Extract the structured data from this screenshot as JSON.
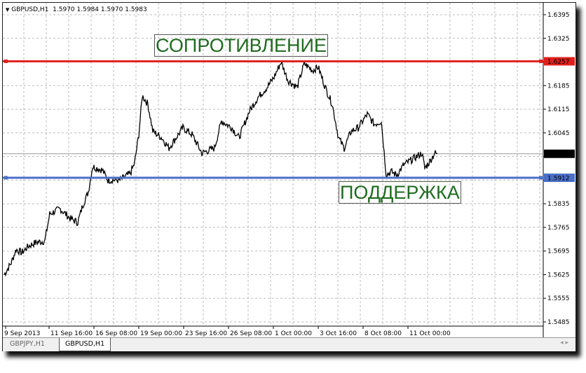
{
  "header": {
    "symbol": "GBPUSD,H1",
    "ohlc": "1.5970 1.5984 1.5970 1.5983",
    "menu_icon": "triangle-down-icon"
  },
  "tabs": [
    {
      "label": "GBPJPY,H1",
      "active": false
    },
    {
      "label": "GBPUSD,H1",
      "active": true
    }
  ],
  "annotations": {
    "resistance": "СОПРОТИВЛЕНИЕ",
    "support": "ПОДДЕРЖКА"
  },
  "chart_data": {
    "type": "line",
    "symbol": "GBPUSD",
    "timeframe": "H1",
    "ylim": [
      1.5485,
      1.6395
    ],
    "y_ticks": [
      "1.6395",
      "1.6325",
      "1.6257",
      "1.6185",
      "1.6115",
      "1.6045",
      "1.5983",
      "1.5912",
      "1.5835",
      "1.5765",
      "1.5695",
      "1.5625",
      "1.5555",
      "1.5485"
    ],
    "x_ticks": [
      "9 Sep 2013",
      "11 Sep 16:00",
      "16 Sep 08:00",
      "19 Sep 00:00",
      "23 Sep 16:00",
      "26 Sep 08:00",
      "1 Oct 00:00",
      "3 Oct 16:00",
      "8 Oct 08:00",
      "11 Oct 00:00"
    ],
    "resistance": {
      "value": 1.6257,
      "label": "1.6257",
      "color": "#e0201c"
    },
    "support": {
      "value": 1.5912,
      "label": "1.5912",
      "color": "#4a6fc8"
    },
    "current": {
      "value": 1.5983,
      "label": "1.5983"
    },
    "grid": true,
    "series": [
      {
        "bar_price": [
          [
            0,
            1.5625
          ],
          [
            10,
            1.566
          ],
          [
            17,
            1.57
          ],
          [
            25,
            1.569
          ],
          [
            35,
            1.571
          ],
          [
            45,
            1.572
          ],
          [
            58,
            1.5725
          ],
          [
            65,
            1.5805
          ],
          [
            80,
            1.582
          ],
          [
            95,
            1.579
          ],
          [
            105,
            1.578
          ],
          [
            112,
            1.583
          ],
          [
            120,
            1.587
          ],
          [
            126,
            1.5945
          ],
          [
            140,
            1.5935
          ],
          [
            148,
            1.5905
          ],
          [
            165,
            1.5905
          ],
          [
            180,
            1.5925
          ],
          [
            186,
            1.5955
          ],
          [
            192,
            1.604
          ],
          [
            197,
            1.6155
          ],
          [
            205,
            1.613
          ],
          [
            212,
            1.605
          ],
          [
            225,
            1.603
          ],
          [
            235,
            1.6
          ],
          [
            255,
            1.606
          ],
          [
            268,
            1.604
          ],
          [
            282,
            1.5985
          ],
          [
            300,
            1.6
          ],
          [
            310,
            1.608
          ],
          [
            325,
            1.606
          ],
          [
            335,
            1.603
          ],
          [
            350,
            1.611
          ],
          [
            362,
            1.615
          ],
          [
            375,
            1.618
          ],
          [
            385,
            1.621
          ],
          [
            395,
            1.6255
          ],
          [
            405,
            1.62
          ],
          [
            418,
            1.618
          ],
          [
            428,
            1.625
          ],
          [
            440,
            1.623
          ],
          [
            448,
            1.624
          ],
          [
            458,
            1.618
          ],
          [
            468,
            1.613
          ],
          [
            477,
            1.603
          ],
          [
            485,
            1.6
          ],
          [
            495,
            1.605
          ],
          [
            505,
            1.606
          ],
          [
            518,
            1.61
          ],
          [
            528,
            1.607
          ],
          [
            538,
            1.608
          ],
          [
            545,
            1.592
          ],
          [
            552,
            1.593
          ],
          [
            560,
            1.592
          ],
          [
            570,
            1.595
          ],
          [
            585,
            1.597
          ],
          [
            596,
            1.5985
          ],
          [
            600,
            1.594
          ],
          [
            607,
            1.596
          ],
          [
            614,
            1.5985
          ],
          [
            618,
            1.5983
          ]
        ]
      }
    ]
  }
}
